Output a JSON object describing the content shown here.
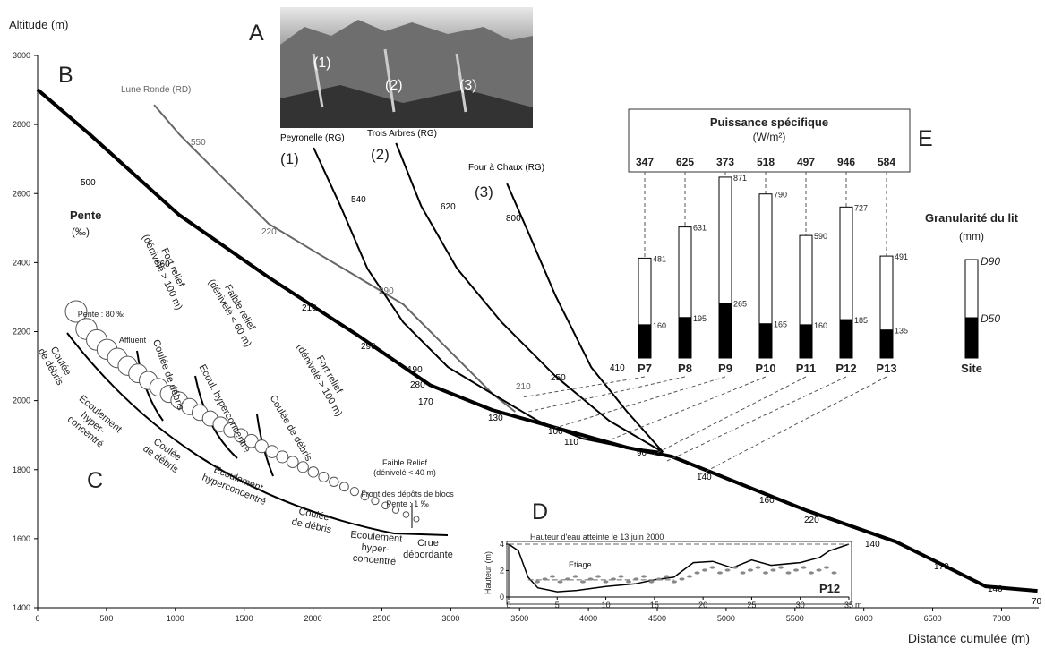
{
  "chart_data": [
    {
      "type": "line",
      "ylabel": "Altitude (m)",
      "xlabel": "Distance cumulée (m)",
      "xlim": [
        0,
        7270
      ],
      "ylim": [
        1400,
        3000
      ],
      "xticks": [
        0,
        500,
        1000,
        1500,
        2000,
        2500,
        3000,
        3500,
        4000,
        4500,
        5000,
        5500,
        6000,
        6500,
        7000
      ],
      "yticks": [
        1400,
        1600,
        1800,
        2000,
        2200,
        2400,
        2600,
        2800,
        3000
      ],
      "slope_title": "Pente",
      "slope_unit": "(‰)",
      "slope_labels": [
        500,
        160,
        210,
        290,
        280,
        170,
        130,
        100,
        110,
        90,
        140,
        160,
        220,
        140,
        170,
        140,
        70,
        550,
        220,
        290,
        210,
        540,
        190,
        620,
        250,
        800,
        410
      ],
      "series": [
        {
          "color": "#000000",
          "x": [
            0,
            377,
            1028,
            1679,
            2329,
            2850,
            3300,
            4281,
            4606,
            4932,
            5583,
            6233,
            6558,
            6884,
            7261
          ],
          "values": [
            2901,
            2772,
            2538,
            2357,
            2188,
            2045,
            1973,
            1864,
            1838,
            1786,
            1682,
            1591,
            1527,
            1462,
            1449
          ]
        },
        {
          "name": "Lune Ronde (RD)",
          "color": "#666666",
          "x": [
            846,
            1028,
            1353,
            1679,
            2004,
            2329,
            2655,
            2980,
            3305,
            3468
          ],
          "values": [
            2857,
            2772,
            2642,
            2512,
            2434,
            2357,
            2279,
            2149,
            2019,
            1968
          ]
        },
        {
          "name": "Peyronelle (RG)",
          "color": "#000000",
          "x": [
            2004,
            2199,
            2394,
            2655,
            2980,
            3305,
            3631,
            3956,
            4281,
            4541
          ],
          "values": [
            2733,
            2564,
            2383,
            2227,
            2097,
            2019,
            1942,
            1890,
            1864,
            1851
          ]
        },
        {
          "name": "Trois Arbres (RG)",
          "color": "#000000",
          "x": [
            2603,
            2785,
            3045,
            3370,
            3760,
            4150,
            4541
          ],
          "values": [
            2746,
            2564,
            2383,
            2227,
            2071,
            1942,
            1851
          ]
        },
        {
          "name": "Four à Chaux (RG)",
          "color": "#000000",
          "x": [
            3409,
            3565,
            3760,
            4020,
            4281,
            4541
          ],
          "values": [
            2629,
            2486,
            2305,
            2097,
            1968,
            1851
          ]
        }
      ]
    },
    {
      "type": "bar",
      "title": "Puissance spécifique",
      "subtitle": "(W/m²)",
      "power_values": [
        347,
        625,
        373,
        518,
        497,
        946,
        584
      ],
      "legend_title": "Granularité du lit",
      "legend_unit": "(mm)",
      "categories": [
        "P7",
        "P8",
        "P9",
        "P10",
        "P11",
        "P12",
        "P13",
        "Site"
      ],
      "series": [
        {
          "name": "D90",
          "color": "#ffffff",
          "values": [
            481,
            631,
            871,
            790,
            590,
            727,
            491,
            null
          ]
        },
        {
          "name": "D50",
          "color": "#000000",
          "values": [
            160,
            195,
            265,
            165,
            160,
            185,
            135,
            null
          ]
        }
      ]
    },
    {
      "type": "area",
      "title": "P12",
      "ylabel": "Hauteur (m)",
      "xunit": "m",
      "annotation": "Hauteur d'eau atteinte le 13 juin 2000",
      "low_water_label": "Etiage",
      "water_level": 4,
      "low_water": 1.3,
      "xlim": [
        0,
        35
      ],
      "ylim": [
        0,
        4
      ],
      "xticks": [
        0,
        5,
        10,
        15,
        20,
        25,
        30,
        35
      ],
      "yticks": [
        0,
        2,
        4
      ],
      "x": [
        0,
        1,
        2,
        3,
        5,
        7,
        10,
        13,
        15,
        17,
        19,
        21,
        23,
        25,
        27,
        30,
        32,
        33,
        35
      ],
      "values": [
        4,
        3.5,
        1.5,
        0.7,
        0.4,
        0.5,
        0.8,
        1,
        1.3,
        1.5,
        2.6,
        2.7,
        2.2,
        2.8,
        2.4,
        2.6,
        3,
        3.5,
        4
      ]
    }
  ],
  "panels": [
    "A",
    "B",
    "C",
    "D",
    "E"
  ],
  "tags": [
    "(1)",
    "(2)",
    "(3)"
  ],
  "schematic": {
    "slope_top": "Pente : 80 ‰",
    "affluent": "Affluent",
    "debris_1": [
      "Coulée",
      "de débris"
    ],
    "relief_1": [
      "Fort relief",
      "(dénivelé > 100 m)"
    ],
    "relief_2": [
      "Faible relief",
      "(dénivelé < 60 m)"
    ],
    "relief_3": [
      "Fort relief",
      "(dénivelé > 100 m)"
    ],
    "debris_2": "Coulée de débris",
    "hyper_2": "Ecoul. hyperconcentré",
    "debris_3": "Coulée de débris",
    "relief_4": [
      "Faible Relief",
      "(dénivelé < 40 m)"
    ],
    "front": [
      "Front des dépôts de blocs",
      "Pente : 1 ‰"
    ],
    "zone_1": [
      "Ecoulement",
      "hyper-",
      "concentré"
    ],
    "zone_2": [
      "Coulée",
      "de débris"
    ],
    "zone_3": [
      "Ecoulement",
      "hyperconcentré"
    ],
    "zone_4": [
      "Coulée",
      "de débris"
    ],
    "zone_5": [
      "Ecoulement",
      "hyper-",
      "concentré"
    ],
    "zone_6": [
      "Crue",
      "débordante"
    ]
  }
}
